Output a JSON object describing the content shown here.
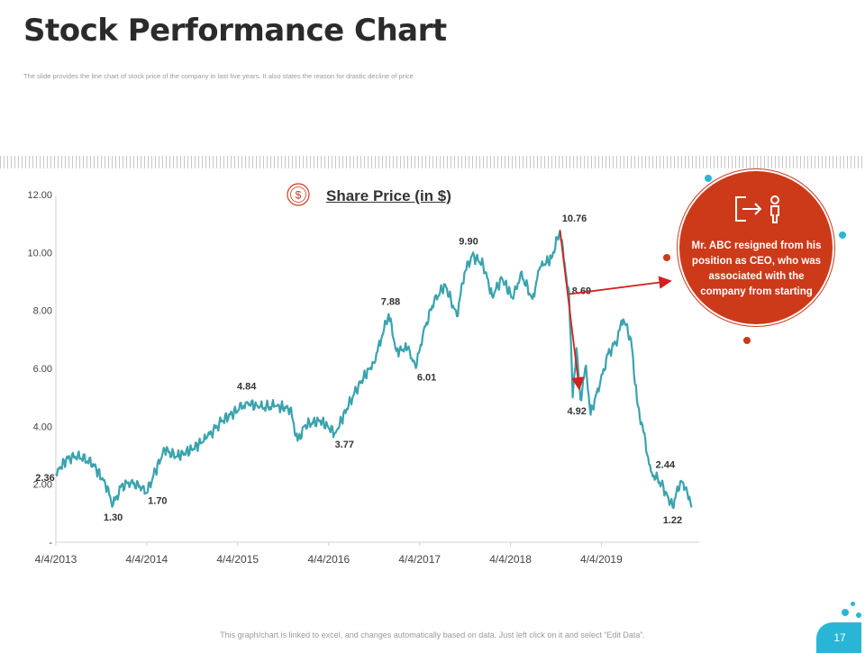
{
  "header": {
    "title": "Stock Performance Chart",
    "subtitle": "The slide provides the line chart of stock price of the company in last five years. It also states the reason for drastic decline of price"
  },
  "callout": {
    "text": "Mr. ABC resigned from his position as CEO, who was associated with the company from starting",
    "icon": "exit-person-icon",
    "color": "#cc3a1a"
  },
  "footer": {
    "note": "This graph/chart is linked to excel, and changes automatically based on data. Just left click on it and select “Edit Data”.",
    "page_number": "17"
  },
  "colors": {
    "line": "#3aa3ad",
    "accent": "#cc3a1a",
    "badge": "#29b6d6"
  },
  "chart_data": {
    "type": "line",
    "title": "Share Price (in $)",
    "icon": "dollar-icon",
    "xlabel": "",
    "ylabel": "",
    "x_ticks": [
      "4/4/2013",
      "4/4/2014",
      "4/4/2015",
      "4/4/2016",
      "4/4/2017",
      "4/4/2018",
      "4/4/2019"
    ],
    "y_ticks": [
      "-",
      "2.00",
      "4.00",
      "6.00",
      "8.00",
      "10.00",
      "12.00"
    ],
    "xlim": [
      "2013-04-04",
      "2020-05-01"
    ],
    "ylim": [
      0,
      12.5
    ],
    "grid": false,
    "series": [
      {
        "name": "",
        "points": [
          [
            "2013-04-04",
            2.36
          ],
          [
            "2013-05-15",
            2.85
          ],
          [
            "2013-07-01",
            3.0
          ],
          [
            "2013-09-01",
            2.7
          ],
          [
            "2013-10-20",
            2.0
          ],
          [
            "2013-11-20",
            1.3
          ],
          [
            "2013-12-20",
            1.9
          ],
          [
            "2014-02-01",
            2.1
          ],
          [
            "2014-03-15",
            1.85
          ],
          [
            "2014-04-04",
            1.7
          ],
          [
            "2014-05-01",
            2.3
          ],
          [
            "2014-06-15",
            3.2
          ],
          [
            "2014-08-01",
            2.95
          ],
          [
            "2014-10-01",
            3.2
          ],
          [
            "2014-12-01",
            3.6
          ],
          [
            "2015-02-01",
            4.2
          ],
          [
            "2015-04-10",
            4.6
          ],
          [
            "2015-05-10",
            4.84
          ],
          [
            "2015-07-01",
            4.65
          ],
          [
            "2015-09-01",
            4.7
          ],
          [
            "2015-11-01",
            4.6
          ],
          [
            "2015-12-01",
            3.5
          ],
          [
            "2016-01-01",
            4.05
          ],
          [
            "2016-03-01",
            4.2
          ],
          [
            "2016-05-01",
            3.77
          ],
          [
            "2016-06-15",
            4.6
          ],
          [
            "2016-08-01",
            5.4
          ],
          [
            "2016-10-01",
            6.2
          ],
          [
            "2016-11-01",
            7.0
          ],
          [
            "2016-12-01",
            7.88
          ],
          [
            "2017-01-01",
            6.6
          ],
          [
            "2017-02-15",
            6.7
          ],
          [
            "2017-03-20",
            6.01
          ],
          [
            "2017-04-20",
            7.3
          ],
          [
            "2017-06-01",
            8.3
          ],
          [
            "2017-07-15",
            8.9
          ],
          [
            "2017-09-01",
            7.8
          ],
          [
            "2017-10-01",
            9.3
          ],
          [
            "2017-11-01",
            9.9
          ],
          [
            "2017-12-15",
            9.6
          ],
          [
            "2018-01-20",
            8.5
          ],
          [
            "2018-03-01",
            9.1
          ],
          [
            "2018-04-15",
            8.4
          ],
          [
            "2018-05-15",
            9.3
          ],
          [
            "2018-07-01",
            8.4
          ],
          [
            "2018-08-01",
            9.5
          ],
          [
            "2018-09-15",
            9.8
          ],
          [
            "2018-10-20",
            10.76
          ],
          [
            "2018-11-15",
            9.1
          ],
          [
            "2018-11-25",
            8.69
          ],
          [
            "2018-12-10",
            5.0
          ],
          [
            "2018-12-25",
            6.7
          ],
          [
            "2019-01-10",
            4.92
          ],
          [
            "2019-02-01",
            6.1
          ],
          [
            "2019-02-20",
            4.4
          ],
          [
            "2019-04-01",
            5.6
          ],
          [
            "2019-05-01",
            6.5
          ],
          [
            "2019-06-01",
            6.9
          ],
          [
            "2019-07-01",
            7.7
          ],
          [
            "2019-08-01",
            7.0
          ],
          [
            "2019-08-25",
            4.9
          ],
          [
            "2019-09-20",
            3.8
          ],
          [
            "2019-10-20",
            2.44
          ],
          [
            "2019-12-01",
            2.0
          ],
          [
            "2020-01-15",
            1.22
          ],
          [
            "2020-02-15",
            2.1
          ],
          [
            "2020-03-10",
            1.9
          ],
          [
            "2020-03-31",
            1.2
          ]
        ]
      }
    ],
    "data_labels": [
      {
        "x": "2013-04-04",
        "y": 2.36,
        "text": "2.36"
      },
      {
        "x": "2013-11-20",
        "y": 1.3,
        "text": "1.30"
      },
      {
        "x": "2014-04-04",
        "y": 1.7,
        "text": "1.70"
      },
      {
        "x": "2015-05-10",
        "y": 4.84,
        "text": "4.84"
      },
      {
        "x": "2016-05-01",
        "y": 3.77,
        "text": "3.77"
      },
      {
        "x": "2016-12-01",
        "y": 7.88,
        "text": "7.88"
      },
      {
        "x": "2017-03-20",
        "y": 6.01,
        "text": "6.01"
      },
      {
        "x": "2017-11-01",
        "y": 9.9,
        "text": "9.90"
      },
      {
        "x": "2018-10-20",
        "y": 10.76,
        "text": "10.76"
      },
      {
        "x": "2018-11-25",
        "y": 8.69,
        "text": "8.69"
      },
      {
        "x": "2019-01-10",
        "y": 4.92,
        "text": "4.92"
      },
      {
        "x": "2019-10-20",
        "y": 2.44,
        "text": "2.44"
      },
      {
        "x": "2020-01-15",
        "y": 1.22,
        "text": "1.22"
      }
    ]
  }
}
